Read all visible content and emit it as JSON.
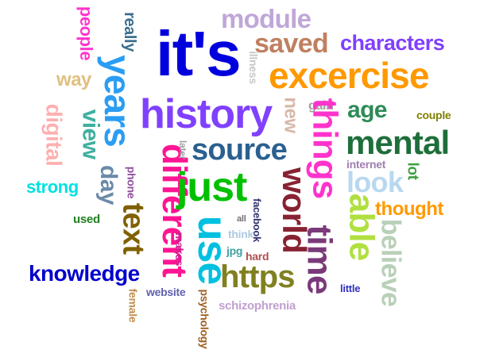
{
  "words": [
    {
      "text": "it's",
      "color": "#0000dd",
      "rotated": false
    },
    {
      "text": "excercise",
      "color": "#ff9900",
      "rotated": false
    },
    {
      "text": "history",
      "color": "#8040ff",
      "rotated": false
    },
    {
      "text": "module",
      "color": "#c0a6d8",
      "rotated": false
    },
    {
      "text": "saved",
      "color": "#c08060",
      "rotated": false
    },
    {
      "text": "characters",
      "color": "#8040ff",
      "rotated": false
    },
    {
      "text": "years",
      "color": "#2a9df4",
      "rotated": true
    },
    {
      "text": "people",
      "color": "#ff33cc",
      "rotated": true
    },
    {
      "text": "really",
      "color": "#3a6e8e",
      "rotated": true
    },
    {
      "text": "way",
      "color": "#e0c080",
      "rotated": false
    },
    {
      "text": "illness",
      "color": "#c8c8c8",
      "rotated": true
    },
    {
      "text": "gain",
      "color": "#a0a0a0",
      "rotated": false
    },
    {
      "text": "couple",
      "color": "#808000",
      "rotated": false
    },
    {
      "text": "age",
      "color": "#2e8b57",
      "rotated": false
    },
    {
      "text": "new",
      "color": "#d8b8a8",
      "rotated": true
    },
    {
      "text": "things",
      "color": "#ff33cc",
      "rotated": true
    },
    {
      "text": "mental",
      "color": "#1e6e3a",
      "rotated": false
    },
    {
      "text": "digital",
      "color": "#ffb0b0",
      "rotated": true
    },
    {
      "text": "view",
      "color": "#40b0a0",
      "rotated": true
    },
    {
      "text": "different",
      "color": "#ff1493",
      "rotated": true
    },
    {
      "text": "source",
      "color": "#2a6090",
      "rotated": false
    },
    {
      "text": "internet",
      "color": "#a080b0",
      "rotated": false
    },
    {
      "text": "lot",
      "color": "#40a040",
      "rotated": true
    },
    {
      "text": "later",
      "color": "#a0a0a0",
      "rotated": true
    },
    {
      "text": "phone",
      "color": "#9050a0",
      "rotated": true
    },
    {
      "text": "day",
      "color": "#6a8aa8",
      "rotated": true
    },
    {
      "text": "just",
      "color": "#00c000",
      "rotated": false
    },
    {
      "text": "world",
      "color": "#882233",
      "rotated": true
    },
    {
      "text": "look",
      "color": "#b8d8f0",
      "rotated": false
    },
    {
      "text": "strong",
      "color": "#00e0e0",
      "rotated": false
    },
    {
      "text": "facebook",
      "color": "#303070",
      "rotated": true
    },
    {
      "text": "time",
      "color": "#7a3a7a",
      "rotated": true
    },
    {
      "text": "thought",
      "color": "#ff9900",
      "rotated": false
    },
    {
      "text": "able",
      "color": "#b0e040",
      "rotated": true
    },
    {
      "text": "text",
      "color": "#806000",
      "rotated": true
    },
    {
      "text": "used",
      "color": "#208020",
      "rotated": false
    },
    {
      "text": "all",
      "color": "#707070",
      "rotated": false
    },
    {
      "text": "use",
      "color": "#00c0e0",
      "rotated": true
    },
    {
      "text": "believe",
      "color": "#b8d0b8",
      "rotated": true
    },
    {
      "text": "think",
      "color": "#b0c8e0",
      "rotated": false
    },
    {
      "text": "makes",
      "color": "#d02090",
      "rotated": true
    },
    {
      "text": "jpg",
      "color": "#40a0a0",
      "rotated": false
    },
    {
      "text": "hard",
      "color": "#b05050",
      "rotated": false
    },
    {
      "text": "https",
      "color": "#808020",
      "rotated": false
    },
    {
      "text": "knowledge",
      "color": "#0000cc",
      "rotated": false
    },
    {
      "text": "female",
      "color": "#c09050",
      "rotated": true
    },
    {
      "text": "website",
      "color": "#6060b0",
      "rotated": false
    },
    {
      "text": "psychology",
      "color": "#a06020",
      "rotated": true
    },
    {
      "text": "schizophrenia",
      "color": "#c0a0d0",
      "rotated": false
    },
    {
      "text": "little",
      "color": "#3030c0",
      "rotated": false
    }
  ]
}
